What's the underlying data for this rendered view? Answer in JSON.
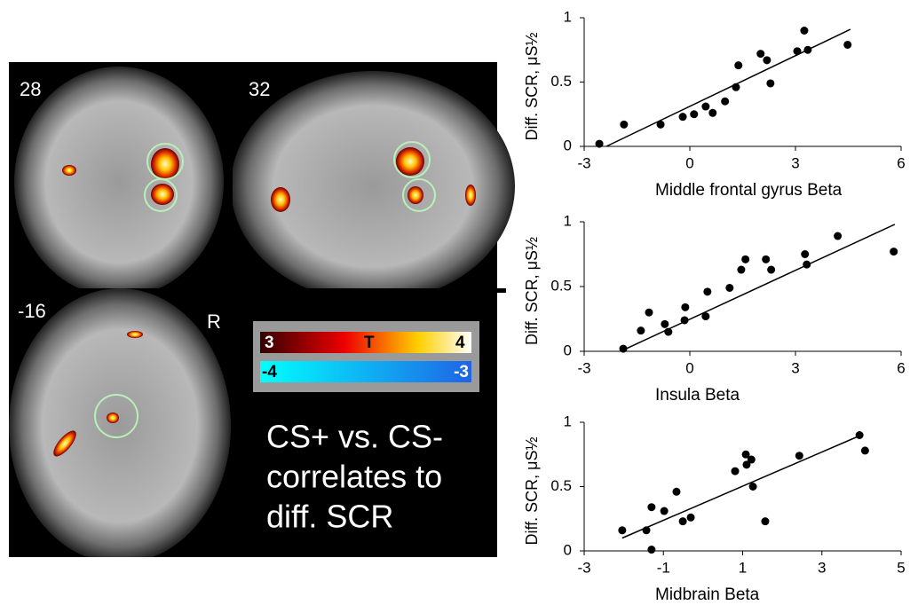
{
  "brain_panel": {
    "slices": [
      "28",
      "32",
      "-16"
    ],
    "orientation": "R",
    "colorbar": {
      "positive": [
        "3",
        "T",
        "4"
      ],
      "negative": [
        "-4",
        "-3"
      ]
    },
    "caption": [
      "CS+ vs. CS-",
      "correlates to",
      "diff. SCR"
    ]
  },
  "chart_data": [
    {
      "type": "scatter",
      "x_label": "Middle frontal gyrus  Beta",
      "y_label": "Diff. SCR, μS½",
      "x": [
        -2.57,
        -1.87,
        -0.83,
        -0.2,
        0.12,
        0.45,
        0.65,
        1.0,
        1.31,
        1.38,
        2.01,
        2.19,
        2.29,
        3.05,
        3.25,
        3.35,
        4.48
      ],
      "y": [
        0.02,
        0.17,
        0.17,
        0.23,
        0.25,
        0.31,
        0.26,
        0.35,
        0.46,
        0.63,
        0.72,
        0.67,
        0.49,
        0.74,
        0.9,
        0.75,
        0.79
      ],
      "color": "#000000",
      "trendline": {
        "x": [
          -2.37,
          4.56
        ],
        "y": [
          0,
          0.91
        ]
      },
      "xlim": [
        -3,
        6
      ],
      "xticks": [
        -3,
        0,
        3,
        6
      ],
      "ylim": [
        0,
        1
      ],
      "yticks": [
        0,
        0.5,
        1
      ]
    },
    {
      "type": "scatter",
      "x_label": "Insula Beta",
      "y_label": "Diff. SCR, μS½",
      "x": [
        -1.89,
        -1.39,
        -1.16,
        -0.71,
        -0.61,
        -0.15,
        -0.13,
        0.45,
        0.5,
        1.13,
        1.46,
        1.58,
        2.16,
        2.31,
        3.27,
        3.32,
        4.2,
        5.79
      ],
      "y": [
        0.02,
        0.16,
        0.3,
        0.21,
        0.15,
        0.24,
        0.34,
        0.27,
        0.46,
        0.49,
        0.63,
        0.71,
        0.71,
        0.63,
        0.75,
        0.67,
        0.89,
        0.77
      ],
      "color": "#000000",
      "trendline": {
        "x": [
          -1.89,
          5.82
        ],
        "y": [
          0.01,
          0.98
        ]
      },
      "xlim": [
        -3,
        6
      ],
      "xticks": [
        -3,
        0,
        3,
        6
      ],
      "ylim": [
        0,
        1
      ],
      "yticks": [
        0,
        0.5,
        1
      ]
    },
    {
      "type": "scatter",
      "x_label": "Midbrain Beta",
      "y_label": "Diff. SCR, μS½",
      "x": [
        -2.04,
        -1.43,
        -1.3,
        -1.3,
        -0.98,
        -0.67,
        -0.51,
        -0.31,
        0.81,
        1.08,
        1.1,
        1.22,
        1.26,
        1.57,
        2.43,
        3.95,
        4.09
      ],
      "y": [
        0.16,
        0.16,
        0.01,
        0.34,
        0.31,
        0.46,
        0.23,
        0.26,
        0.62,
        0.75,
        0.67,
        0.71,
        0.5,
        0.23,
        0.74,
        0.9,
        0.78
      ],
      "color": "#000000",
      "trendline": {
        "x": [
          -2.04,
          3.99
        ],
        "y": [
          0.1,
          0.9
        ]
      },
      "xlim": [
        -3,
        5
      ],
      "xticks": [
        -3,
        -1,
        1,
        3,
        5
      ],
      "ylim": [
        0,
        1
      ],
      "yticks": [
        0,
        0.5,
        1
      ]
    }
  ]
}
